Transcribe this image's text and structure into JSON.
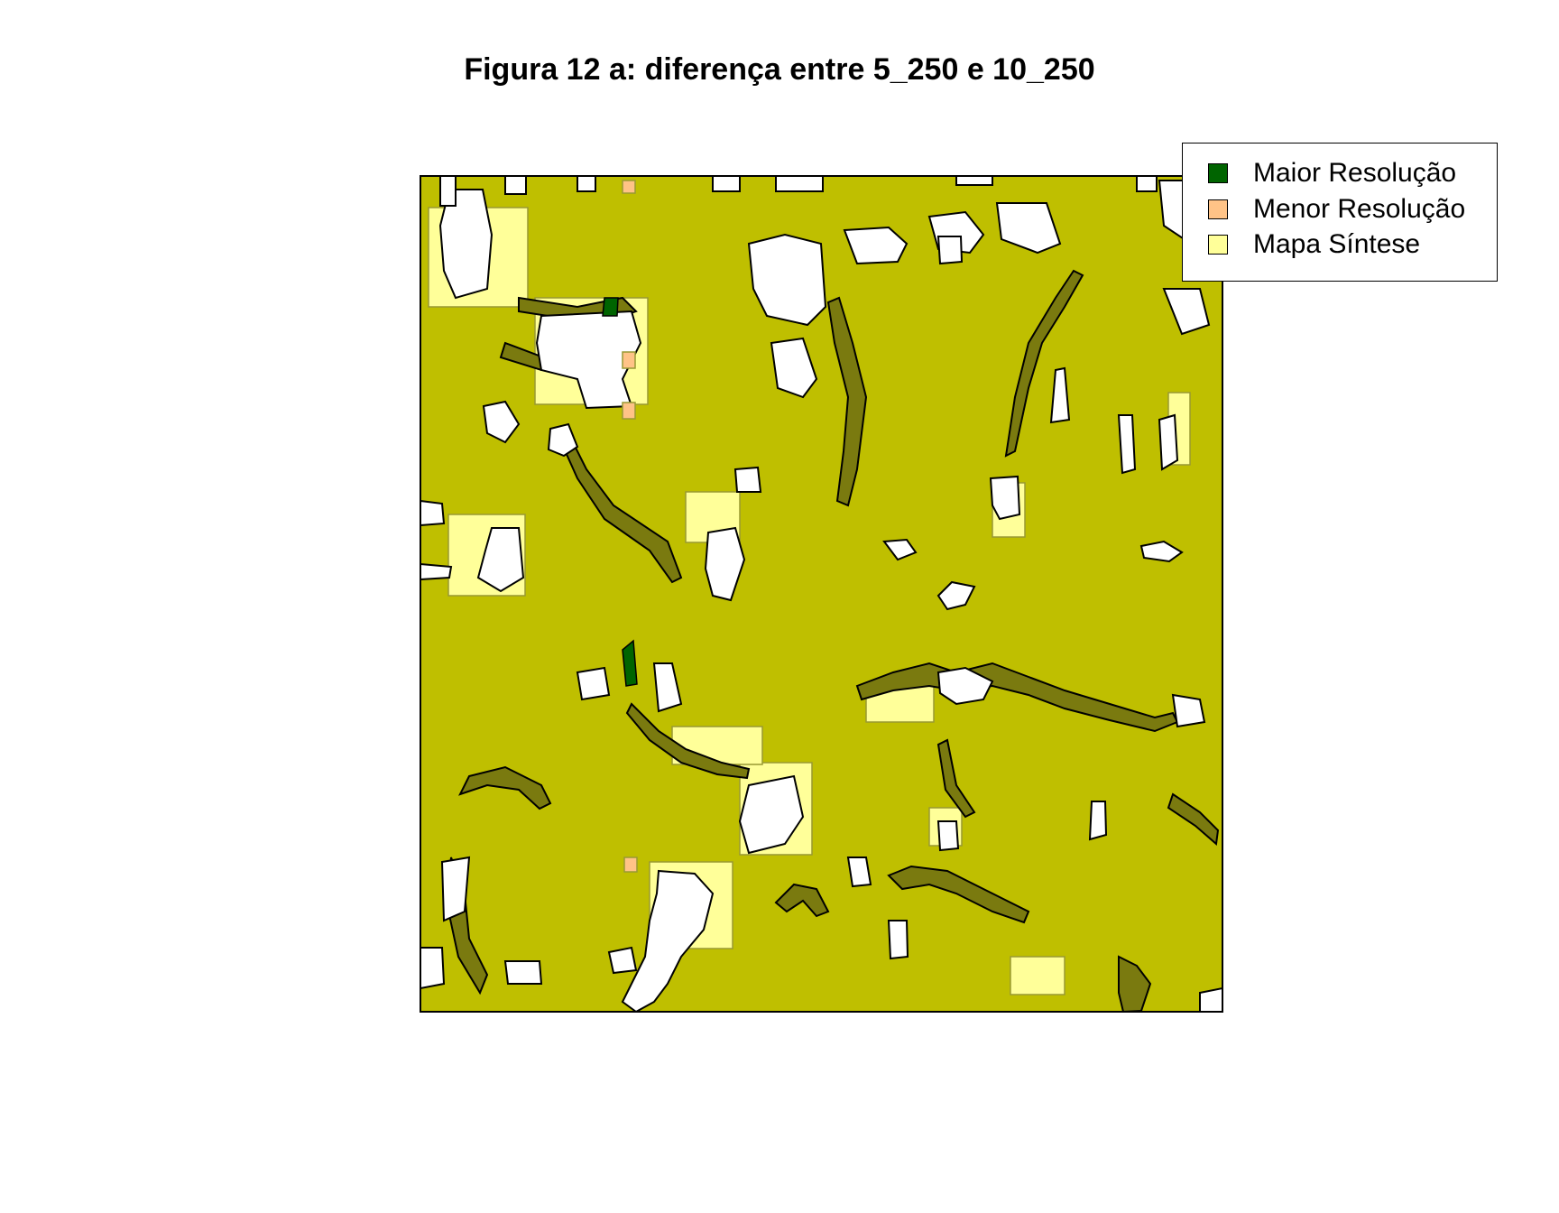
{
  "title": "Figura 12 a: diferença entre 5_250 e 10_250",
  "legend": {
    "items": [
      {
        "label": "Maior Resolução",
        "color": "#006400"
      },
      {
        "label": "Menor Resolução",
        "color": "#FFC387"
      },
      {
        "label": "Mapa Síntese",
        "color": "#FFFF99"
      }
    ]
  },
  "colors": {
    "background": "#ffffff",
    "combined_fill": "#BFBF00",
    "edge_fill": "#7A7A0F",
    "outline": "#000000"
  }
}
